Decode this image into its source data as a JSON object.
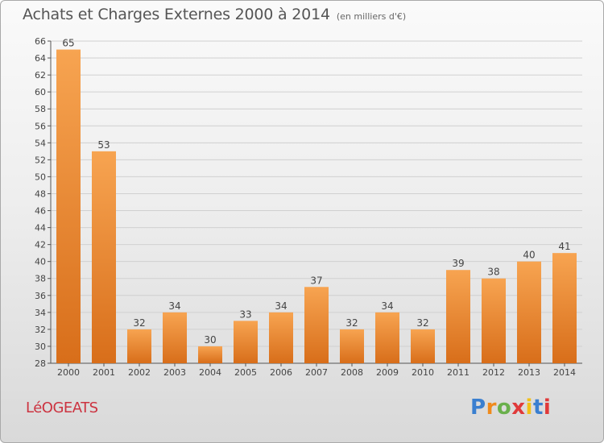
{
  "header": {
    "title": "Achats et Charges Externes 2000 à 2014",
    "unit": "(en milliers d'€)"
  },
  "footer": {
    "place": "LéOGEATS",
    "logo": "Proxiti",
    "logo_colors": [
      "#3a7fd0",
      "#f08a1c",
      "#6ab04c",
      "#e03a3a",
      "#f2c018",
      "#3a7fd0",
      "#e03a3a"
    ]
  },
  "chart_data": {
    "type": "bar",
    "title": "Achats et Charges Externes 2000 à 2014",
    "categories": [
      "2000",
      "2001",
      "2002",
      "2003",
      "2004",
      "2005",
      "2006",
      "2007",
      "2008",
      "2009",
      "2010",
      "2011",
      "2012",
      "2013",
      "2014"
    ],
    "values": [
      65,
      53,
      32,
      34,
      30,
      33,
      34,
      37,
      32,
      34,
      32,
      39,
      38,
      40,
      41
    ],
    "ylim": [
      28,
      66
    ],
    "yticks": [
      28,
      30,
      32,
      34,
      36,
      38,
      40,
      42,
      44,
      46,
      48,
      50,
      52,
      54,
      56,
      58,
      60,
      62,
      64,
      66
    ],
    "grid": true,
    "bar_color_top": "#f7a451",
    "bar_color_bottom": "#d86e1a"
  }
}
